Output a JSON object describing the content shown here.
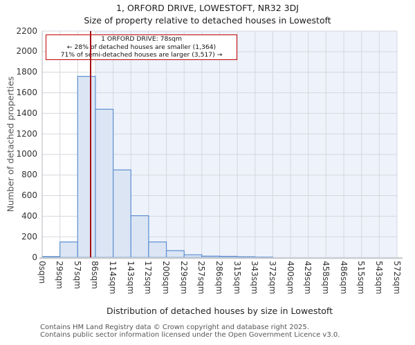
{
  "title": "1, ORFORD DRIVE, LOWESTOFT, NR32 3DJ",
  "subtitle": "Size of property relative to detached houses in Lowestoft",
  "annotation": {
    "line1": "1 ORFORD DRIVE: 78sqm",
    "line2": "← 28% of detached houses are smaller (1,364)",
    "line3": "71% of semi-detached houses are larger (3,517) →"
  },
  "footer": {
    "line1": "Contains HM Land Registry data © Crown copyright and database right 2025.",
    "line2": "Contains public sector information licensed under the Open Government Licence v3.0."
  },
  "chart_data": {
    "type": "bar",
    "title": "1, ORFORD DRIVE, LOWESTOFT, NR32 3DJ",
    "subtitle": "Size of property relative to detached houses in Lowestoft",
    "xlabel": "Distribution of detached houses by size in Lowestoft",
    "ylabel": "Number of detached properties",
    "categories": [
      "0sqm",
      "29sqm",
      "57sqm",
      "86sqm",
      "114sqm",
      "143sqm",
      "172sqm",
      "200sqm",
      "229sqm",
      "257sqm",
      "286sqm",
      "315sqm",
      "343sqm",
      "372sqm",
      "400sqm",
      "429sqm",
      "458sqm",
      "486sqm",
      "515sqm",
      "543sqm",
      "572sqm"
    ],
    "values": [
      8,
      150,
      1760,
      1440,
      850,
      405,
      150,
      65,
      25,
      12,
      10,
      6,
      3,
      0,
      0,
      0,
      0,
      0,
      0,
      0
    ],
    "ylim": [
      0,
      2200
    ],
    "yticks": [
      0,
      200,
      400,
      600,
      800,
      1000,
      1200,
      1400,
      1600,
      1800,
      2000,
      2200
    ],
    "x_max_sqm": 572,
    "grid": true,
    "legend": "none",
    "marker": {
      "x_sqm": 78,
      "color": "#a50f15"
    },
    "shaded_region": {
      "from_sqm": 86,
      "to_sqm": 572,
      "color": "#eef2fb"
    },
    "colors": {
      "bar_fill": "#dbe5f4",
      "bar_stroke": "#5b8fd0",
      "grid_line": "#d5d7dc",
      "axis_line": "#c9ccd1",
      "annotation_border": "#c00000",
      "marker_line": "#a50f15"
    }
  }
}
